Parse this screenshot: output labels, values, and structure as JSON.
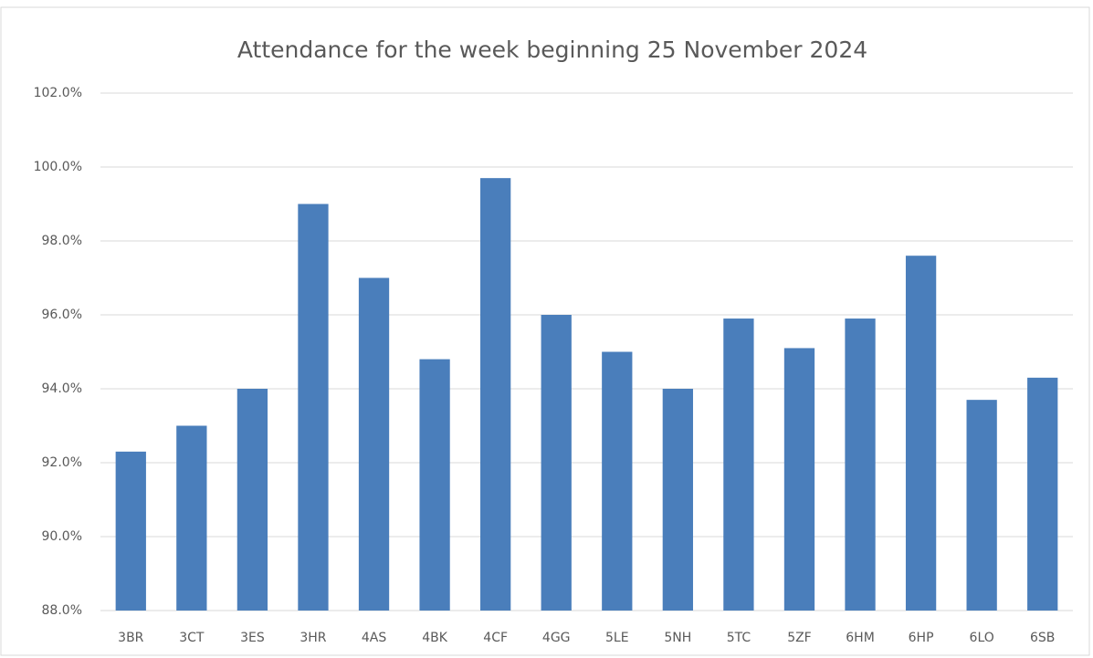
{
  "chart_data": {
    "type": "bar",
    "title": "Attendance for the week beginning 25 November 2024",
    "categories": [
      "3BR",
      "3CT",
      "3ES",
      "3HR",
      "4AS",
      "4BK",
      "4CF",
      "4GG",
      "5LE",
      "5NH",
      "5TC",
      "5ZF",
      "6HM",
      "6HP",
      "6LO",
      "6SB"
    ],
    "values": [
      92.3,
      93.0,
      94.0,
      99.0,
      97.0,
      94.8,
      99.7,
      96.0,
      95.0,
      94.0,
      95.9,
      95.1,
      95.9,
      97.6,
      93.7,
      94.3
    ],
    "color": "#4a7ebb",
    "ylim": [
      88,
      102
    ],
    "yticks": [
      {
        "value": 88,
        "label": "88.0%"
      },
      {
        "value": 90,
        "label": "90.0%"
      },
      {
        "value": 92,
        "label": "92.0%"
      },
      {
        "value": 94,
        "label": "94.0%"
      },
      {
        "value": 96,
        "label": "96.0%"
      },
      {
        "value": 98,
        "label": "98.0%"
      },
      {
        "value": 100,
        "label": "100.0%"
      },
      {
        "value": 102,
        "label": "102.0%"
      }
    ],
    "grid": true
  }
}
